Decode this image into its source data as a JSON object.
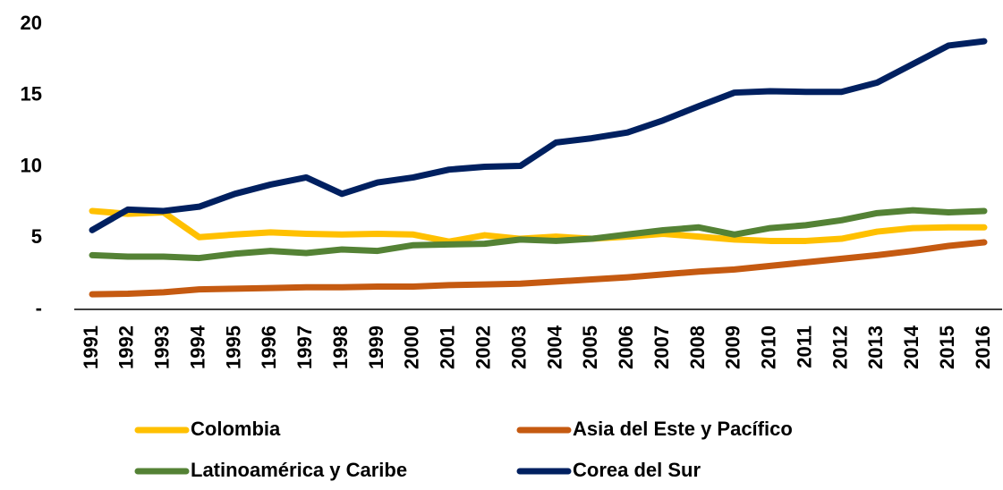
{
  "chart_data": {
    "type": "line",
    "x": [
      "1991",
      "1992",
      "1993",
      "1994",
      "1995",
      "1996",
      "1997",
      "1998",
      "1999",
      "2000",
      "2001",
      "2002",
      "2003",
      "2004",
      "2005",
      "2006",
      "2007",
      "2008",
      "2009",
      "2010",
      "2011",
      "2012",
      "2013",
      "2014",
      "2015",
      "2016"
    ],
    "series": [
      {
        "name": "Colombia",
        "color": "#FFC000",
        "values": [
          6.9,
          6.7,
          6.8,
          5.06,
          5.25,
          5.4,
          5.3,
          5.25,
          5.3,
          5.25,
          4.75,
          5.2,
          4.95,
          5.1,
          4.95,
          5.1,
          5.3,
          5.1,
          4.9,
          4.8,
          4.8,
          4.95,
          5.45,
          5.7,
          5.75,
          5.75
        ]
      },
      {
        "name": "Asia del Este y Pacífico",
        "color": "#C55A11",
        "values": [
          1.06,
          1.1,
          1.2,
          1.4,
          1.45,
          1.5,
          1.55,
          1.55,
          1.6,
          1.6,
          1.7,
          1.75,
          1.8,
          1.95,
          2.1,
          2.25,
          2.45,
          2.65,
          2.8,
          3.05,
          3.3,
          3.55,
          3.8,
          4.1,
          4.45,
          4.7
        ]
      },
      {
        "name": "Latinoamérica y Caribe",
        "color": "#548235",
        "values": [
          3.8,
          3.7,
          3.7,
          3.6,
          3.9,
          4.1,
          3.95,
          4.2,
          4.1,
          4.5,
          4.55,
          4.6,
          4.9,
          4.8,
          4.95,
          5.25,
          5.55,
          5.75,
          5.25,
          5.7,
          5.9,
          6.25,
          6.75,
          6.95,
          6.8,
          6.9
        ]
      },
      {
        "name": "Corea del Sur",
        "color": "#002060",
        "values": [
          5.56,
          7.0,
          6.9,
          7.2,
          8.1,
          8.75,
          9.25,
          8.1,
          8.9,
          9.25,
          9.8,
          10.0,
          10.06,
          11.7,
          12.0,
          12.4,
          13.25,
          14.25,
          15.2,
          15.3,
          15.25,
          15.25,
          15.9,
          17.2,
          18.5,
          18.8
        ]
      }
    ],
    "ylim": [
      0,
      20
    ],
    "yticks": [
      {
        "value": 0,
        "label": "-"
      },
      5,
      10,
      15,
      20
    ],
    "grid": false
  }
}
